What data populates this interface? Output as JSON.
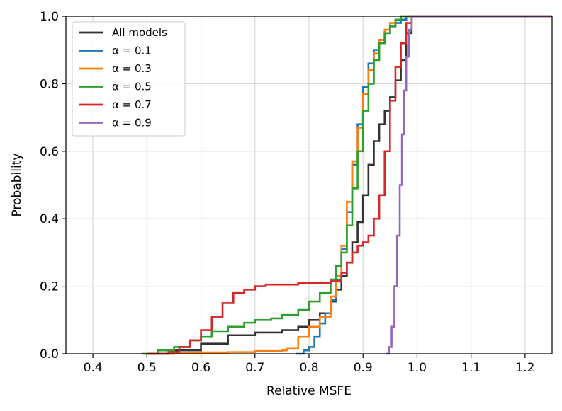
{
  "chart_data": {
    "type": "line",
    "title": "",
    "xlabel": "Relative MSFE",
    "ylabel": "Probability",
    "xlim": [
      0.35,
      1.25
    ],
    "ylim": [
      0.0,
      1.0
    ],
    "xticks": [
      0.4,
      0.5,
      0.6,
      0.7,
      0.8,
      0.9,
      1.0,
      1.1,
      1.2
    ],
    "xtick_labels": [
      "0.4",
      "0.5",
      "0.6",
      "0.7",
      "0.8",
      "0.9",
      "1.0",
      "1.1",
      "1.2"
    ],
    "yticks": [
      0.0,
      0.2,
      0.4,
      0.6,
      0.8,
      1.0
    ],
    "ytick_labels": [
      "0.0",
      "0.2",
      "0.4",
      "0.6",
      "0.8",
      "1.0"
    ],
    "grid": true,
    "legend_position": "top-left",
    "series": [
      {
        "name": "All models",
        "color": "#333333",
        "x": [
          0.5,
          0.55,
          0.6,
          0.65,
          0.7,
          0.75,
          0.78,
          0.8,
          0.82,
          0.84,
          0.85,
          0.86,
          0.87,
          0.88,
          0.89,
          0.9,
          0.91,
          0.92,
          0.93,
          0.94,
          0.95,
          0.96,
          0.97,
          0.98,
          0.99,
          1.0,
          1.25
        ],
        "y": [
          0.0,
          0.01,
          0.03,
          0.055,
          0.063,
          0.07,
          0.08,
          0.1,
          0.12,
          0.155,
          0.19,
          0.23,
          0.27,
          0.33,
          0.39,
          0.47,
          0.56,
          0.63,
          0.68,
          0.72,
          0.76,
          0.81,
          0.87,
          0.95,
          1.0,
          1.0,
          1.0
        ]
      },
      {
        "name": "α = 0.1",
        "color": "#1f77b4",
        "x": [
          0.775,
          0.79,
          0.8,
          0.81,
          0.82,
          0.83,
          0.84,
          0.85,
          0.86,
          0.87,
          0.88,
          0.89,
          0.9,
          0.91,
          0.92,
          0.93,
          0.94,
          0.95,
          0.96,
          0.97,
          0.98,
          1.0,
          1.25
        ],
        "y": [
          0.0,
          0.01,
          0.02,
          0.05,
          0.09,
          0.12,
          0.16,
          0.22,
          0.31,
          0.42,
          0.56,
          0.68,
          0.79,
          0.86,
          0.9,
          0.93,
          0.95,
          0.97,
          0.98,
          0.99,
          1.0,
          1.0,
          1.0
        ]
      },
      {
        "name": "α = 0.3",
        "color": "#ff7f0e",
        "x": [
          0.5,
          0.55,
          0.6,
          0.65,
          0.7,
          0.75,
          0.76,
          0.78,
          0.8,
          0.82,
          0.84,
          0.85,
          0.86,
          0.87,
          0.88,
          0.89,
          0.9,
          0.91,
          0.92,
          0.93,
          0.94,
          0.95,
          0.96,
          0.97,
          0.98,
          1.0,
          1.25
        ],
        "y": [
          0.0,
          0.002,
          0.004,
          0.005,
          0.008,
          0.01,
          0.015,
          0.05,
          0.08,
          0.11,
          0.17,
          0.23,
          0.32,
          0.45,
          0.57,
          0.67,
          0.77,
          0.84,
          0.89,
          0.93,
          0.96,
          0.98,
          0.99,
          1.0,
          1.0,
          1.0,
          1.0
        ]
      },
      {
        "name": "α = 0.5",
        "color": "#2ca02c",
        "x": [
          0.49,
          0.52,
          0.55,
          0.58,
          0.6,
          0.62,
          0.65,
          0.68,
          0.7,
          0.73,
          0.75,
          0.78,
          0.8,
          0.82,
          0.84,
          0.85,
          0.86,
          0.87,
          0.88,
          0.89,
          0.9,
          0.91,
          0.92,
          0.93,
          0.94,
          0.95,
          0.96,
          0.97,
          0.98,
          1.0,
          1.25
        ],
        "y": [
          0.0,
          0.01,
          0.02,
          0.04,
          0.05,
          0.065,
          0.08,
          0.092,
          0.1,
          0.105,
          0.115,
          0.13,
          0.155,
          0.18,
          0.22,
          0.26,
          0.3,
          0.38,
          0.49,
          0.6,
          0.72,
          0.8,
          0.87,
          0.92,
          0.95,
          0.97,
          0.99,
          1.0,
          1.0,
          1.0,
          1.0
        ]
      },
      {
        "name": "α = 0.7",
        "color": "#d62728",
        "x": [
          0.5,
          0.54,
          0.56,
          0.58,
          0.6,
          0.62,
          0.64,
          0.66,
          0.68,
          0.7,
          0.72,
          0.75,
          0.78,
          0.8,
          0.82,
          0.84,
          0.86,
          0.87,
          0.88,
          0.89,
          0.9,
          0.91,
          0.92,
          0.93,
          0.94,
          0.95,
          0.96,
          0.97,
          0.98,
          0.99,
          1.0,
          1.25
        ],
        "y": [
          0.0,
          0.005,
          0.02,
          0.04,
          0.07,
          0.11,
          0.15,
          0.18,
          0.19,
          0.2,
          0.205,
          0.205,
          0.21,
          0.21,
          0.21,
          0.215,
          0.24,
          0.27,
          0.3,
          0.32,
          0.33,
          0.35,
          0.4,
          0.47,
          0.6,
          0.75,
          0.85,
          0.92,
          0.98,
          1.0,
          1.0,
          1.0
        ]
      },
      {
        "name": "α = 0.9",
        "color": "#9467bd",
        "x": [
          0.943,
          0.948,
          0.953,
          0.958,
          0.963,
          0.968,
          0.972,
          0.976,
          0.98,
          0.985,
          0.99,
          1.0,
          1.25
        ],
        "y": [
          0.0,
          0.02,
          0.08,
          0.2,
          0.35,
          0.5,
          0.65,
          0.78,
          0.88,
          0.96,
          1.0,
          1.0,
          1.0
        ]
      }
    ]
  }
}
